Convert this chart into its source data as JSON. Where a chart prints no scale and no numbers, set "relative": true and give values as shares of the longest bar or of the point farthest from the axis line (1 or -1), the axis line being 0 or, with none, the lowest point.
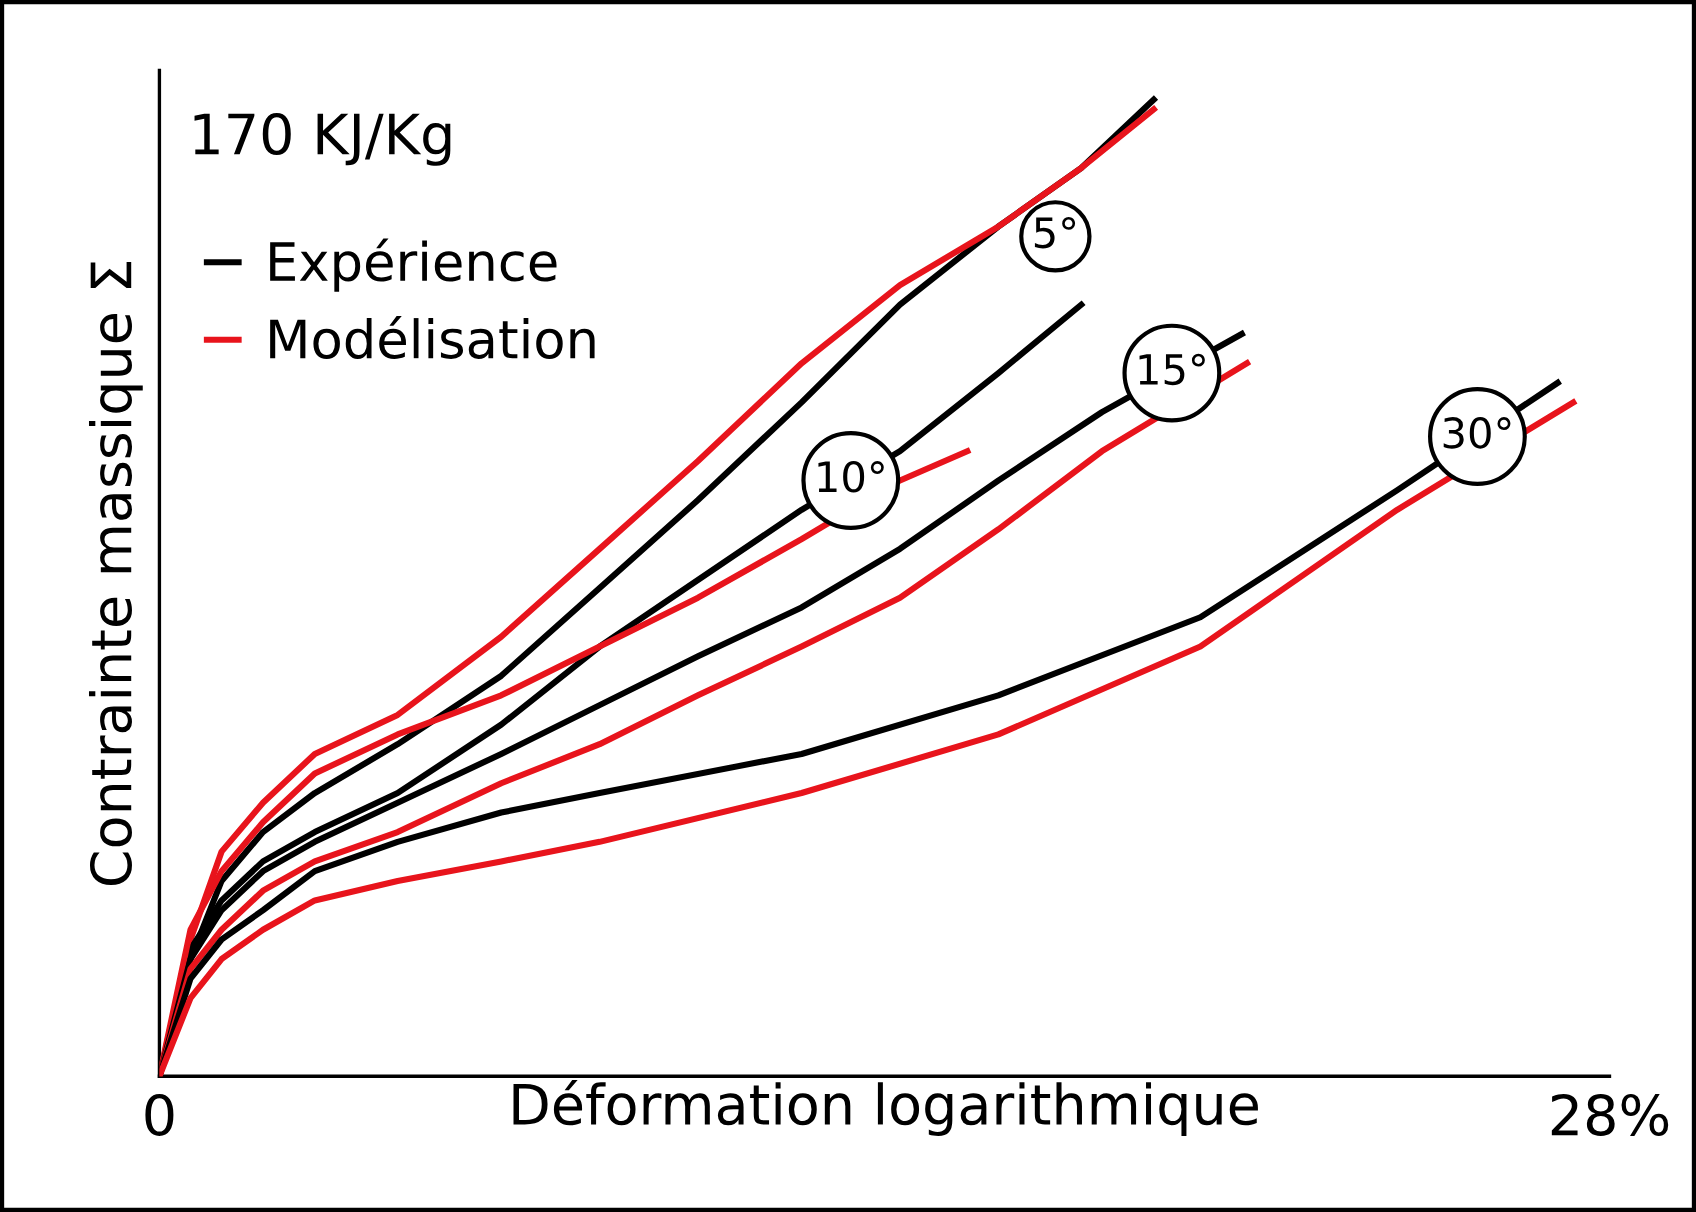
{
  "chart_data": {
    "type": "line",
    "title": "170 KJ/Kg",
    "xlabel": "Déformation logarithmique",
    "ylabel": "Contrainte massique Σ",
    "relative": true,
    "xlim": [
      0,
      28
    ],
    "xticks": [
      0,
      {
        "value": 28,
        "label": "28%"
      }
    ],
    "legend": "top left",
    "grid": false,
    "marker": "none",
    "line_style": "solid",
    "series": [
      {
        "name": "Expérience",
        "color": "#000000",
        "x": [
          0,
          0.6,
          1.2,
          2,
          3,
          4.6,
          6.6,
          8.5,
          10.4,
          12.4,
          14.3,
          16.2,
          17.8,
          19.2
        ],
        "values": [
          0,
          0.12,
          0.2,
          0.25,
          0.29,
          0.34,
          0.41,
          0.5,
          0.59,
          0.69,
          0.79,
          0.87,
          0.93,
          1.0
        ]
      },
      {
        "name": "Modélisation",
        "color": "#e8141c",
        "x": [
          0,
          0.6,
          1.2,
          2,
          3,
          4.6,
          6.6,
          8.5,
          10.4,
          12.4,
          14.3,
          16.2,
          17.8,
          19.2
        ],
        "values": [
          0,
          0.14,
          0.23,
          0.28,
          0.33,
          0.37,
          0.45,
          0.54,
          0.63,
          0.73,
          0.81,
          0.87,
          0.93,
          0.99
        ]
      },
      {
        "color": "#000000",
        "x": [
          0,
          0.6,
          1.2,
          2,
          3,
          4.6,
          6.6,
          8.5,
          12.4,
          14.3,
          16.2,
          17.8
        ],
        "values": [
          0,
          0.13,
          0.18,
          0.22,
          0.25,
          0.29,
          0.36,
          0.44,
          0.58,
          0.64,
          0.72,
          0.79
        ]
      },
      {
        "color": "#e8141c",
        "x": [
          0,
          0.6,
          1.2,
          2,
          3,
          4.6,
          6.6,
          8.5,
          10.4,
          12.4,
          14.3,
          15.6
        ],
        "values": [
          0,
          0.15,
          0.21,
          0.26,
          0.31,
          0.35,
          0.39,
          0.44,
          0.49,
          0.55,
          0.61,
          0.64
        ]
      },
      {
        "color": "#000000",
        "x": [
          0,
          0.6,
          1.2,
          2,
          3,
          4.6,
          6.6,
          8.5,
          10.4,
          12.4,
          14.3,
          16.2,
          18.2,
          20.9
        ],
        "values": [
          0,
          0.12,
          0.17,
          0.21,
          0.24,
          0.28,
          0.33,
          0.38,
          0.43,
          0.48,
          0.54,
          0.61,
          0.68,
          0.76
        ]
      },
      {
        "color": "#e8141c",
        "x": [
          0,
          0.6,
          1.2,
          2,
          3,
          4.6,
          6.6,
          8.5,
          10.4,
          12.4,
          14.3,
          16.2,
          18.2,
          21.0
        ],
        "values": [
          0,
          0.11,
          0.15,
          0.19,
          0.22,
          0.25,
          0.3,
          0.34,
          0.39,
          0.44,
          0.49,
          0.56,
          0.64,
          0.73
        ]
      },
      {
        "color": "#000000",
        "x": [
          0,
          0.6,
          1.2,
          2,
          3,
          4.6,
          6.6,
          8.5,
          12.4,
          16.2,
          20.1,
          23.9,
          27.0
        ],
        "values": [
          0,
          0.1,
          0.14,
          0.17,
          0.21,
          0.24,
          0.27,
          0.29,
          0.33,
          0.39,
          0.47,
          0.6,
          0.71
        ]
      },
      {
        "color": "#e8141c",
        "x": [
          0,
          0.6,
          1.2,
          2,
          3,
          4.6,
          6.6,
          8.5,
          12.4,
          16.2,
          20.1,
          23.9,
          27.3
        ],
        "values": [
          0,
          0.08,
          0.12,
          0.15,
          0.18,
          0.2,
          0.22,
          0.24,
          0.29,
          0.35,
          0.44,
          0.58,
          0.69
        ]
      }
    ],
    "annotations": [
      {
        "text": "5°",
        "x": 17.3,
        "y": 0.86
      },
      {
        "text": "10°",
        "x": 13.35,
        "y": 0.61
      },
      {
        "text": "15°",
        "x": 19.55,
        "y": 0.72
      },
      {
        "text": "30°",
        "x": 25.45,
        "y": 0.655
      }
    ]
  }
}
